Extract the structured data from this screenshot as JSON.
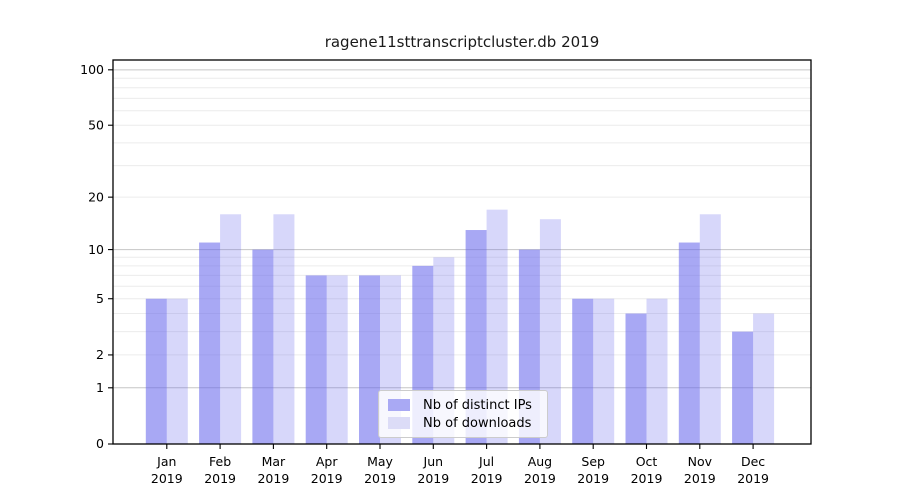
{
  "figure": {
    "background": "#ffffff"
  },
  "chart_data": {
    "type": "bar",
    "title": "ragene11sttranscriptcluster.db 2019",
    "categories": [
      "Jan",
      "Feb",
      "Mar",
      "Apr",
      "May",
      "Jun",
      "Jul",
      "Aug",
      "Sep",
      "Oct",
      "Nov",
      "Dec"
    ],
    "x_tick_year": "2019",
    "series": [
      {
        "name": "Nb of distinct IPs",
        "values": [
          5,
          11,
          10,
          7,
          7,
          8,
          13,
          10,
          5,
          4,
          11,
          3
        ],
        "fill": "#6666ec",
        "fill_opacity": 0.57,
        "swatch_color": "#a9a9f4"
      },
      {
        "name": "Nb of downloads",
        "values": [
          5,
          16,
          16,
          7,
          7,
          9,
          17,
          15,
          5,
          5,
          16,
          4
        ],
        "fill": "#6666ec",
        "fill_opacity": 0.26,
        "swatch_color": "#dcdcf7"
      }
    ],
    "y_scale": "log1p",
    "y_ticks": [
      0,
      1,
      2,
      5,
      10,
      20,
      50,
      100
    ],
    "y_major_gridlines": [
      1,
      10,
      100
    ],
    "y_minor_gridlines": [
      2,
      3,
      4,
      5,
      6,
      7,
      8,
      9,
      20,
      30,
      40,
      50,
      60,
      70,
      80,
      90
    ],
    "ylim": [
      0,
      113
    ],
    "grid": true,
    "legend_position": "lower center",
    "colors": {
      "major_grid": "#c6c6c6",
      "minor_grid": "#ececec",
      "spine": "#000000",
      "tick_label": "#000000",
      "title": "#1a1a1a",
      "legend_border": "#cccccc"
    }
  }
}
